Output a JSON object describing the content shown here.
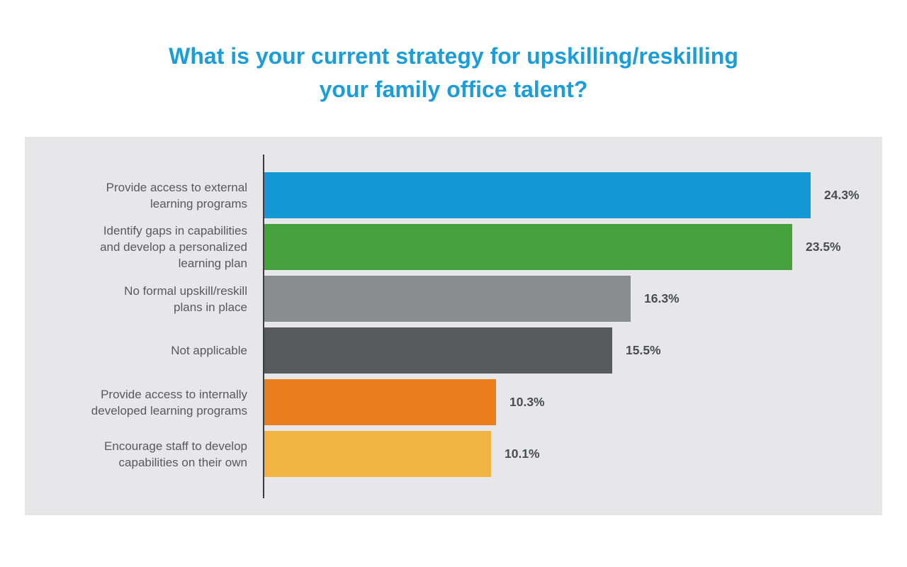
{
  "title": {
    "line1": "What is your current strategy for upskilling/reskilling",
    "line2": "your family office talent?",
    "color": "#1B9DD9"
  },
  "panel": {
    "background": "#E7E7E9",
    "axis_color": "#3C3C3E"
  },
  "chart_data": {
    "type": "bar",
    "orientation": "horizontal",
    "title": "What is your current strategy for upskilling/reskilling your family office talent?",
    "xlabel": "",
    "ylabel": "",
    "xlim": [
      0,
      27.5
    ],
    "grid": false,
    "legend": false,
    "value_suffix": "%",
    "categories": [
      "Provide access to external\nlearning programs",
      "Identify gaps in capabilities\nand develop a personalized\nlearning plan",
      "No formal upskill/reskill\nplans in place",
      "Not applicable",
      "Provide access to internally\ndeveloped learning programs",
      "Encourage staff to develop\ncapabilities on their own"
    ],
    "values": [
      24.3,
      23.5,
      16.3,
      15.5,
      10.3,
      10.1
    ],
    "value_labels": [
      "24.3%",
      "23.5%",
      "16.3%",
      "15.5%",
      "10.3%",
      "10.1%"
    ],
    "bar_colors": [
      "#1599D6",
      "#44A13D",
      "#8B8C8F",
      "#58595B",
      "#E87E1E",
      "#F0B441"
    ],
    "label_color": "#59595B",
    "value_label_color": "#4B4C4E"
  }
}
